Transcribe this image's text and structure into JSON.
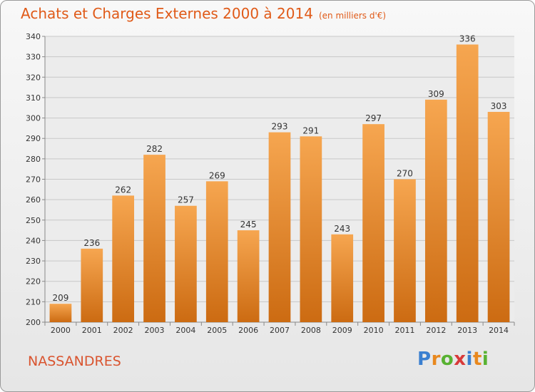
{
  "title": "Achats et Charges Externes 2000 à 2014",
  "subtitle": "(en milliers d'€)",
  "location": "NASSANDRES",
  "logo": {
    "letters": [
      "P",
      "r",
      "o",
      "x",
      "i",
      "t",
      "i"
    ],
    "colors": [
      "#3a7fd0",
      "#e8881e",
      "#58b232",
      "#d83a3a",
      "#3a7fd0",
      "#e8881e",
      "#58b232"
    ]
  },
  "colors": {
    "bar_top": "#f6a650",
    "bar_bottom": "#cc6b12",
    "grid": "#c8c8c8",
    "axis_text": "#333333"
  },
  "chart_data": {
    "type": "bar",
    "categories": [
      "2000",
      "2001",
      "2002",
      "2003",
      "2004",
      "2005",
      "2006",
      "2007",
      "2008",
      "2009",
      "2010",
      "2011",
      "2012",
      "2013",
      "2014"
    ],
    "values": [
      209,
      236,
      262,
      282,
      257,
      269,
      245,
      293,
      291,
      243,
      297,
      270,
      309,
      336,
      303
    ],
    "ylim": [
      200,
      340
    ],
    "yticks": [
      200,
      210,
      220,
      230,
      240,
      250,
      260,
      270,
      280,
      290,
      300,
      310,
      320,
      330,
      340
    ],
    "grid": true,
    "data_labels": true
  }
}
